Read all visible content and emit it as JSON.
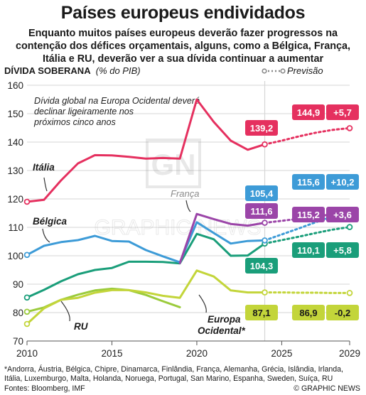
{
  "title": "Países europeus endividados",
  "subtitle": "Enquanto muitos países europeus deverão fazer progressos na contenção dos défices orçamentais, alguns, como a Bélgica, França, Itália e RU, deverão ver a sua dívida continuar a aumentar",
  "footnote": "*Andorra, Áustria, Bélgica, Chipre, Dinamarca, Finlândia, França, Alemanha, Grécia, Islândia, Irlanda, Itália, Luxemburgo, Malta, Holanda, Noruega, Portugal, San Marino, Espanha, Sweden, Suíça, RU",
  "sources": "Fontes: Bloomberg, IMF",
  "credit": "© GRAPHIC NEWS",
  "watermark": "GRAPHIC NEWS",
  "chart_data": {
    "type": "line",
    "ylabel": "DÍVIDA SOBERANA",
    "ylabel_unit": "(% do PIB)",
    "xlim": [
      2010,
      2029
    ],
    "ylim": [
      70,
      160
    ],
    "x_ticks": [
      2010,
      2015,
      2020,
      2025,
      2029
    ],
    "y_ticks": [
      70,
      80,
      90,
      100,
      110,
      120,
      130,
      140,
      150,
      160
    ],
    "grid": true,
    "forecast_start": 2024,
    "legend": {
      "forecast_label": "Previsão",
      "placement": "top-right"
    },
    "annotation": "Dívida global na Europa Ocidental deverá declinar ligeiramente nos próximos cinco anos",
    "series": [
      {
        "name": "Itália",
        "color": "#e5305f",
        "x": [
          2010,
          2011,
          2012,
          2013,
          2014,
          2015,
          2016,
          2017,
          2018,
          2019,
          2020,
          2021,
          2022,
          2023,
          2024,
          2025,
          2026,
          2027,
          2028,
          2029
        ],
        "values": [
          119,
          119.7,
          126.5,
          132.5,
          135.4,
          135.3,
          134.8,
          134.2,
          134.4,
          134.2,
          155,
          147.1,
          140.5,
          137.3,
          139.2,
          140.5,
          142,
          143.3,
          144.3,
          144.9
        ],
        "value_label": "139,2",
        "end_label": "144,9",
        "change_label": "+5,7"
      },
      {
        "name": "França",
        "color": "#9b45a8",
        "x": [
          2019,
          2020,
          2021,
          2022,
          2023,
          2024,
          2025,
          2026,
          2027,
          2028,
          2029
        ],
        "values": [
          97.4,
          114.7,
          112.9,
          111.2,
          110.6,
          111.6,
          112.3,
          113,
          113.8,
          114.6,
          115.2
        ],
        "value_label": "111,6",
        "end_label": "115,2",
        "change_label": "+3,6"
      },
      {
        "name": "Bélgica",
        "color": "#3d9bd7",
        "x": [
          2010,
          2011,
          2012,
          2013,
          2014,
          2015,
          2016,
          2017,
          2018,
          2019,
          2020,
          2021,
          2022,
          2023,
          2024,
          2025,
          2026,
          2027,
          2028,
          2029
        ],
        "values": [
          100.3,
          103.5,
          104.8,
          105.5,
          107,
          105.2,
          105,
          102,
          99.8,
          97.7,
          111.8,
          108,
          104.3,
          105.2,
          105.4,
          107.5,
          109.6,
          111.8,
          113.8,
          115.6
        ],
        "value_label": "105,4",
        "end_label": "115,6",
        "change_label": "+10,2"
      },
      {
        "name": "Europa Ocidental*",
        "color": "#1a9e7a",
        "x": [
          2010,
          2011,
          2012,
          2013,
          2014,
          2015,
          2016,
          2017,
          2018,
          2019,
          2020,
          2021,
          2022,
          2023,
          2024,
          2025,
          2026,
          2027,
          2028,
          2029
        ],
        "values": [
          85.3,
          88,
          91,
          93.5,
          95,
          95.7,
          97.9,
          97.9,
          97.8,
          97.3,
          107.7,
          105.8,
          100,
          100.1,
          104.3,
          105.5,
          106.7,
          108,
          109.2,
          110.1
        ],
        "value_label": "104,3",
        "end_label": "110,1",
        "change_label": "+5,8"
      },
      {
        "name": "RU",
        "color": "#c3d53a",
        "x": [
          2010,
          2011,
          2012,
          2013,
          2014,
          2015,
          2016,
          2017,
          2018,
          2019,
          2020,
          2021,
          2022,
          2023,
          2024,
          2025,
          2026,
          2027,
          2028,
          2029
        ],
        "values": [
          76,
          81.5,
          84.5,
          85.2,
          87,
          87.9,
          87.9,
          87.1,
          85.9,
          85.2,
          94.8,
          92.7,
          87.8,
          87.1,
          87.1,
          87.1,
          87,
          87,
          86.9,
          86.9
        ],
        "value_label": "87,1",
        "end_label": "86,9",
        "change_label": "-0,2"
      },
      {
        "name": "",
        "color": "#9bcb3c",
        "x": [
          2010,
          2011,
          2012,
          2013,
          2014,
          2015,
          2016,
          2017,
          2018,
          2019
        ],
        "values": [
          80.3,
          81.8,
          84.5,
          86.3,
          87.8,
          88.4,
          87.9,
          86.2,
          84,
          81.9
        ]
      }
    ]
  }
}
